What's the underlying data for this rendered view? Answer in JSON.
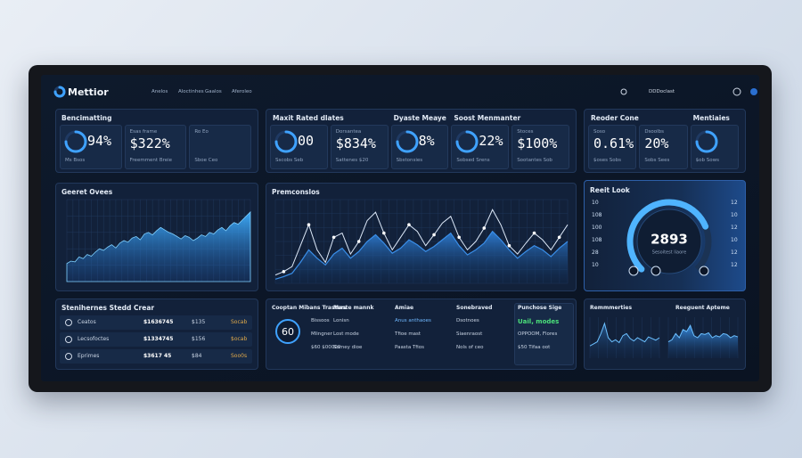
{
  "header": {
    "logo": "Mettior",
    "nav": [
      "Anelos",
      "Aloctinhes",
      "Gaalos",
      "Aferoleo"
    ],
    "account": "DDDoclast"
  },
  "kpi_panels": [
    {
      "title": "Bencimatting",
      "cells": [
        {
          "ring": true,
          "value": "94%",
          "caption": "Ms  Bsos"
        },
        {
          "label": "Esas  frame",
          "value": "$322%",
          "caption": "Freemment Breie"
        },
        {
          "label": "Ro  Eo",
          "caption": "Sboe  Ceo"
        }
      ]
    },
    {
      "cells": [
        {
          "heading": "Maxit Rated dlates",
          "ring": true,
          "value": "00",
          "caption": "Sscobs  Seb"
        },
        {
          "label": "Dorsantea",
          "value": "$834%",
          "caption": "Sattenes  $20"
        },
        {
          "heading": "Dyaste Meaye",
          "ring": true,
          "value": "8%",
          "caption": "Sbstonsies"
        },
        {
          "heading": "Soost Menmanter",
          "ring": true,
          "value": "22%",
          "caption": "Sobsed  Srens"
        },
        {
          "label": "Stoces",
          "value": "$100%",
          "caption": "Sootantes  Sob"
        }
      ]
    },
    {
      "cells": [
        {
          "heading": "Reoder Cone",
          "label": "Soso",
          "value": "0.61%",
          "caption": "$oses  Sobs"
        },
        {
          "label": "Dsoolbs",
          "value": "20%",
          "caption": "Sobs  Sees"
        },
        {
          "heading": "Mentiaies",
          "ring": true,
          "caption": "$ob  Sows"
        }
      ]
    }
  ],
  "area_chart": {
    "title": "Geeret Ovees",
    "ylim": [
      0,
      100
    ],
    "values": [
      22,
      25,
      24,
      30,
      28,
      33,
      31,
      36,
      40,
      38,
      42,
      45,
      41,
      47,
      50,
      48,
      53,
      55,
      51,
      58,
      60,
      57,
      62,
      66,
      63,
      60,
      58,
      55,
      52,
      56,
      54,
      50,
      53,
      57,
      55,
      60,
      58,
      63,
      66,
      62,
      68,
      72,
      70,
      75,
      80,
      85
    ]
  },
  "line_chart": {
    "title": "Premconslos",
    "ylim": [
      0,
      100
    ],
    "series": [
      {
        "color": "#dce8f8",
        "values": [
          10,
          14,
          20,
          45,
          70,
          40,
          25,
          55,
          60,
          35,
          50,
          75,
          85,
          60,
          40,
          55,
          70,
          62,
          45,
          58,
          72,
          80,
          55,
          40,
          50,
          66,
          88,
          70,
          45,
          35,
          48,
          60,
          52,
          40,
          55,
          70
        ]
      },
      {
        "color": "#3a8ee8",
        "values": [
          5,
          8,
          12,
          25,
          40,
          30,
          22,
          35,
          42,
          30,
          38,
          50,
          58,
          48,
          36,
          42,
          52,
          46,
          38,
          44,
          52,
          60,
          45,
          34,
          40,
          48,
          62,
          52,
          40,
          30,
          38,
          45,
          40,
          32,
          42,
          50
        ]
      }
    ]
  },
  "gauge": {
    "title": "Reeit Look",
    "value": "2893",
    "caption": "Sesoitest liaore",
    "level": 75,
    "left_labels": [
      "10",
      "108",
      "100",
      "108",
      "28",
      "10"
    ],
    "right_labels": [
      "12",
      "10",
      "12",
      "10",
      "12",
      "12"
    ]
  },
  "table": {
    "title": "Stenihernes Stedd Crear",
    "rows": [
      [
        "Ceatos",
        "$1636745",
        "$135",
        "Socab"
      ],
      [
        "Lecsofoctes",
        "$1334745",
        "$156",
        "$ocab"
      ],
      [
        "Eprimes",
        "$3617 45",
        "$84",
        "Soo0s"
      ]
    ]
  },
  "summary": {
    "badge": "60",
    "columns": [
      {
        "heading": "Cooptan Mibans Trasters",
        "items": [
          "Bissoos",
          "Mlingner",
          "$60 $00000"
        ]
      },
      {
        "heading": "Maste mannk",
        "items": [
          "Lonisn",
          "Lost mode",
          "Somey  dioe"
        ]
      },
      {
        "heading": "Amiae",
        "items": [
          "Anus anthaoes",
          "Tfioe mast",
          "Paasta Tfios"
        ]
      },
      {
        "heading": "Sonebraved",
        "items": [
          "Dsotnoes",
          "Siaenraost",
          "Nols of ceo"
        ]
      },
      {
        "heading": "Punchose Sige",
        "items": [
          "Uail, modes",
          "OPPOOM, Flores",
          "$50 Tifaa oot"
        ]
      }
    ]
  },
  "mini_charts": [
    {
      "title": "Remmmerties",
      "ylim": [
        0,
        100
      ],
      "values": [
        30,
        35,
        40,
        60,
        85,
        50,
        40,
        45,
        38,
        55,
        60,
        48,
        42,
        50,
        45,
        40,
        52,
        48,
        44,
        50
      ]
    },
    {
      "title": "Reeguent Apteme",
      "ylim": [
        0,
        100
      ],
      "values": [
        40,
        45,
        60,
        50,
        70,
        65,
        80,
        55,
        50,
        60,
        58,
        62,
        50,
        55,
        52,
        60,
        58,
        50,
        55,
        52
      ]
    }
  ]
}
